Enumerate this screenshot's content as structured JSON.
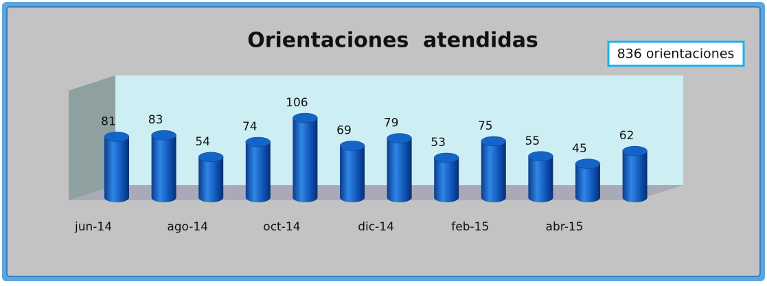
{
  "chart_data": {
    "type": "bar3d",
    "title": "Orientaciones  atendidas",
    "annotation": "836 orientaciones",
    "categories": [
      "jun-14",
      null,
      "ago-14",
      null,
      "oct-14",
      null,
      "dic-14",
      null,
      "feb-15",
      null,
      "abr-15",
      null
    ],
    "values": [
      81,
      83,
      54,
      74,
      106,
      69,
      79,
      53,
      75,
      55,
      45,
      62
    ],
    "color": "#1464c8"
  }
}
